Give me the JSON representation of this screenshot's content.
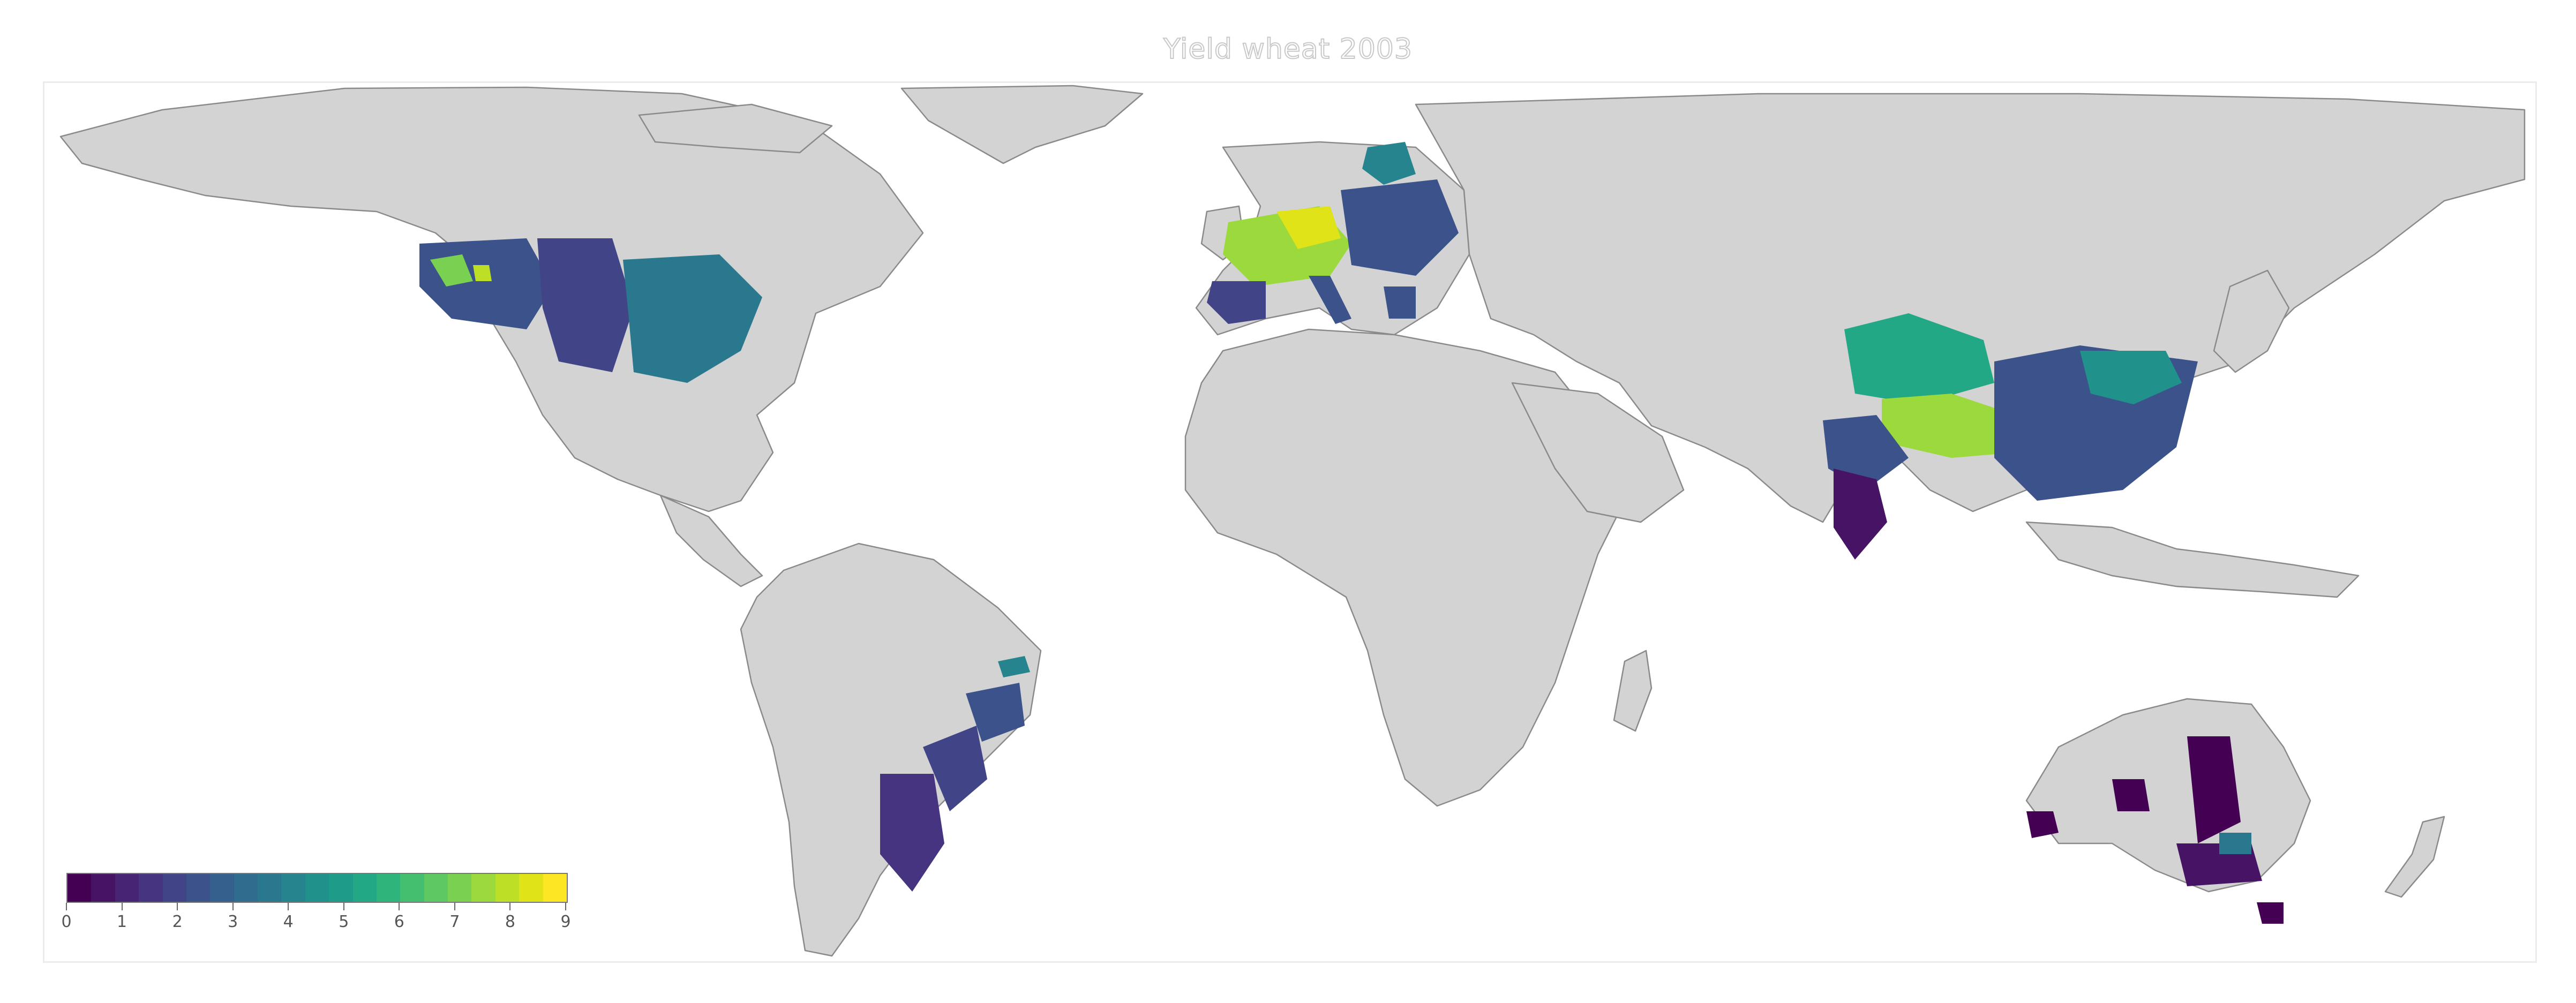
{
  "map": {
    "title": "Yield wheat 2003",
    "land_color": "#d3d3d3",
    "border_color": "#8a8a8a",
    "ocean_color": "#ffffff",
    "colormap": "viridis",
    "colorbar": {
      "min": 0,
      "max": 9,
      "ticks": [
        "0",
        "1",
        "2",
        "3",
        "4",
        "5",
        "6",
        "7",
        "8",
        "9"
      ],
      "colors": [
        "#440154",
        "#471365",
        "#482475",
        "#463480",
        "#414487",
        "#3b528b",
        "#355f8d",
        "#2f6c8e",
        "#2a788e",
        "#25848e",
        "#21918c",
        "#1e9c89",
        "#22a884",
        "#2fb47c",
        "#44bf70",
        "#5ec962",
        "#7ad151",
        "#9bd93c",
        "#bddf26",
        "#dfe318",
        "#fde725"
      ]
    },
    "regions": [
      {
        "name": "United States",
        "level": "2-6"
      },
      {
        "name": "Europe",
        "level": "3-9"
      },
      {
        "name": "China",
        "level": "3-5"
      },
      {
        "name": "Xinjiang",
        "level": "5"
      },
      {
        "name": "Tibet",
        "level": "7"
      },
      {
        "name": "India",
        "level": "1-3"
      },
      {
        "name": "Argentina",
        "level": "1-3"
      },
      {
        "name": "Brazil",
        "level": "2-5"
      },
      {
        "name": "Australia",
        "level": "0-2"
      }
    ]
  }
}
